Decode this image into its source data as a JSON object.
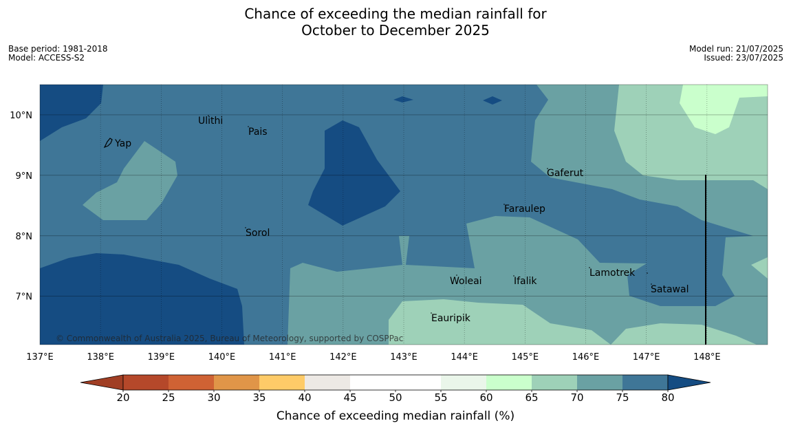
{
  "title": {
    "line1": "Chance of exceeding the median rainfall for",
    "line2": "October to December 2025"
  },
  "info_left": {
    "base_period": "Base period: 1981-2018",
    "model": "Model: ACCESS-S2"
  },
  "info_right": {
    "model_run": "Model run: 21/07/2025",
    "issued": "Issued: 23/07/2025"
  },
  "map": {
    "lon_range": [
      137,
      149
    ],
    "lat_range": [
      6.2,
      10.5
    ],
    "lon_ticks": [
      "137°E",
      "138°E",
      "139°E",
      "140°E",
      "141°E",
      "142°E",
      "143°E",
      "144°E",
      "145°E",
      "146°E",
      "147°E",
      "148°E"
    ],
    "lat_ticks": [
      "10°N",
      "9°N",
      "8°N",
      "7°N"
    ],
    "places": [
      "Ulithi",
      "Pais",
      "Yap",
      "Gaferut",
      "Faraulep",
      "Sorol",
      "Woleai",
      "Ifalik",
      "Lamotrek",
      "Satawal",
      "Eauripik"
    ],
    "copyright": "© Commonwealth of Australia 2025, Bureau of Meteorology, supported by COSPPac"
  },
  "colorbar": {
    "ticks": [
      "20",
      "25",
      "30",
      "35",
      "40",
      "45",
      "50",
      "55",
      "60",
      "65",
      "70",
      "75",
      "80"
    ],
    "colors": [
      "#b5482a",
      "#cf6234",
      "#e09548",
      "#fecb68",
      "#ede9e5",
      "#ffffff",
      "#ffffff",
      "#eaf6ea",
      "#caffcc",
      "#9ed1b8",
      "#6aa1a3",
      "#3f7697"
    ],
    "under_color": "#a03e24",
    "over_color": "#154c82",
    "label": "Chance of exceeding median rainfall (%)"
  }
}
